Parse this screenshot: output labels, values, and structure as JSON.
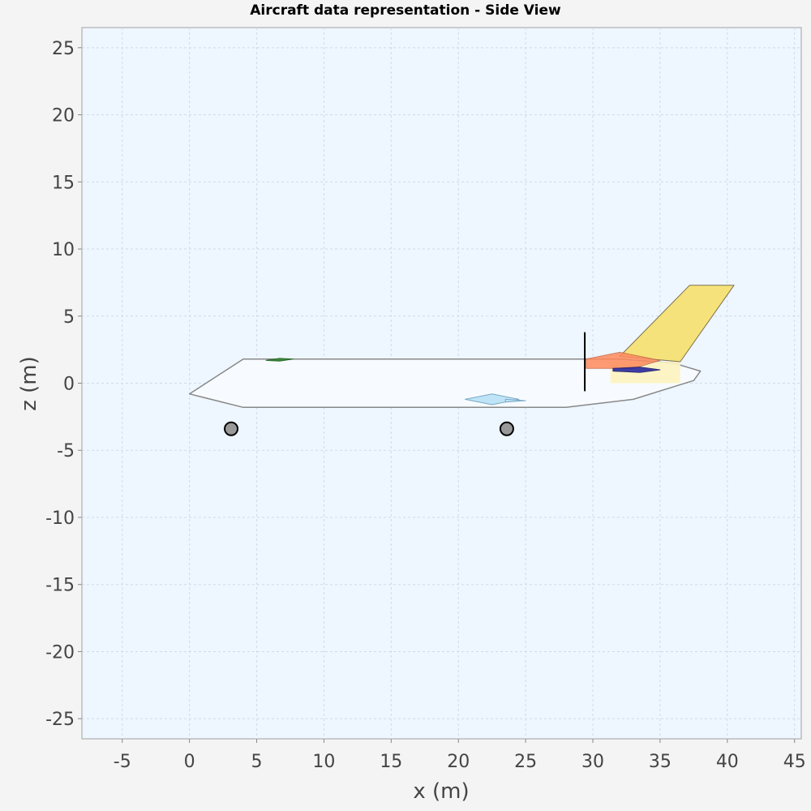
{
  "chart_data": {
    "type": "scatter",
    "title": "Aircraft data representation - Side View",
    "xlabel": "x (m)",
    "ylabel": "z (m)",
    "xlim": [
      -8,
      45.5
    ],
    "ylim": [
      -26.5,
      26.5
    ],
    "x_ticks": [
      -5,
      0,
      5,
      10,
      15,
      20,
      25,
      30,
      35,
      40,
      45
    ],
    "y_ticks": [
      25,
      20,
      15,
      10,
      5,
      0,
      -5,
      -10,
      -15,
      -20,
      -25
    ],
    "grid": true,
    "legend": "none",
    "colors": {
      "plot_background": "#eef6ff",
      "grid": "#cfdbe6",
      "fuselage_fill": "#f7fbff",
      "outline": "#888888",
      "canard": "#3c8a3c",
      "nacelle": "#bfe3f7",
      "vertical_tail": "#f6e27a",
      "horizontal_tail": "#ff8a5c",
      "elevator_fill": "#fdf3c0",
      "rudder_root": "#2a2aa0",
      "landing_gear": "#999999",
      "marker_line": "#000000"
    },
    "shapes": [
      {
        "name": "fuselage",
        "x": [
          0,
          4,
          27.5,
          32,
          36,
          38,
          37.5,
          33,
          28,
          4,
          0
        ],
        "z": [
          -0.8,
          1.8,
          1.8,
          1.8,
          1.5,
          0.9,
          0.2,
          -1.2,
          -1.8,
          -1.8,
          -0.8
        ]
      },
      {
        "name": "canard",
        "x": [
          5.7,
          6.7,
          7.7,
          6.7,
          5.7
        ],
        "z": [
          1.7,
          1.85,
          1.8,
          1.65,
          1.7
        ]
      },
      {
        "name": "engine-nacelle",
        "x": [
          20.5,
          22.5,
          24.5,
          22.5,
          20.5
        ],
        "z": [
          -1.2,
          -0.8,
          -1.2,
          -1.6,
          -1.2
        ]
      },
      {
        "name": "engine-exhaust",
        "x": [
          23.5,
          25.0,
          23.5
        ],
        "z": [
          -1.2,
          -1.3,
          -1.4
        ]
      },
      {
        "name": "vertical-tail",
        "x": [
          32,
          37.2,
          40.5,
          36.5
        ],
        "z": [
          2.0,
          7.3,
          7.3,
          1.6
        ]
      },
      {
        "name": "horizontal-tail",
        "x": [
          29.5,
          32,
          35,
          33,
          29.5
        ],
        "z": [
          1.8,
          2.3,
          1.7,
          1.1,
          1.1
        ]
      },
      {
        "name": "elevator-area",
        "x": [
          31.3,
          36.5,
          36.5,
          31.3
        ],
        "z": [
          1.6,
          1.6,
          0,
          0
        ]
      },
      {
        "name": "rudder-root",
        "x": [
          31.5,
          33.5,
          35,
          33.5,
          31.5
        ],
        "z": [
          1.1,
          1.2,
          1.0,
          0.8,
          0.9
        ]
      }
    ],
    "reference_line": {
      "name": "reference-line",
      "x": 29.4,
      "z": [
        -0.6,
        3.8
      ]
    },
    "landing_gear": [
      {
        "name": "nose-gear",
        "x": 3.1,
        "z": -3.4
      },
      {
        "name": "main-gear",
        "x": 23.6,
        "z": -3.4
      }
    ]
  }
}
